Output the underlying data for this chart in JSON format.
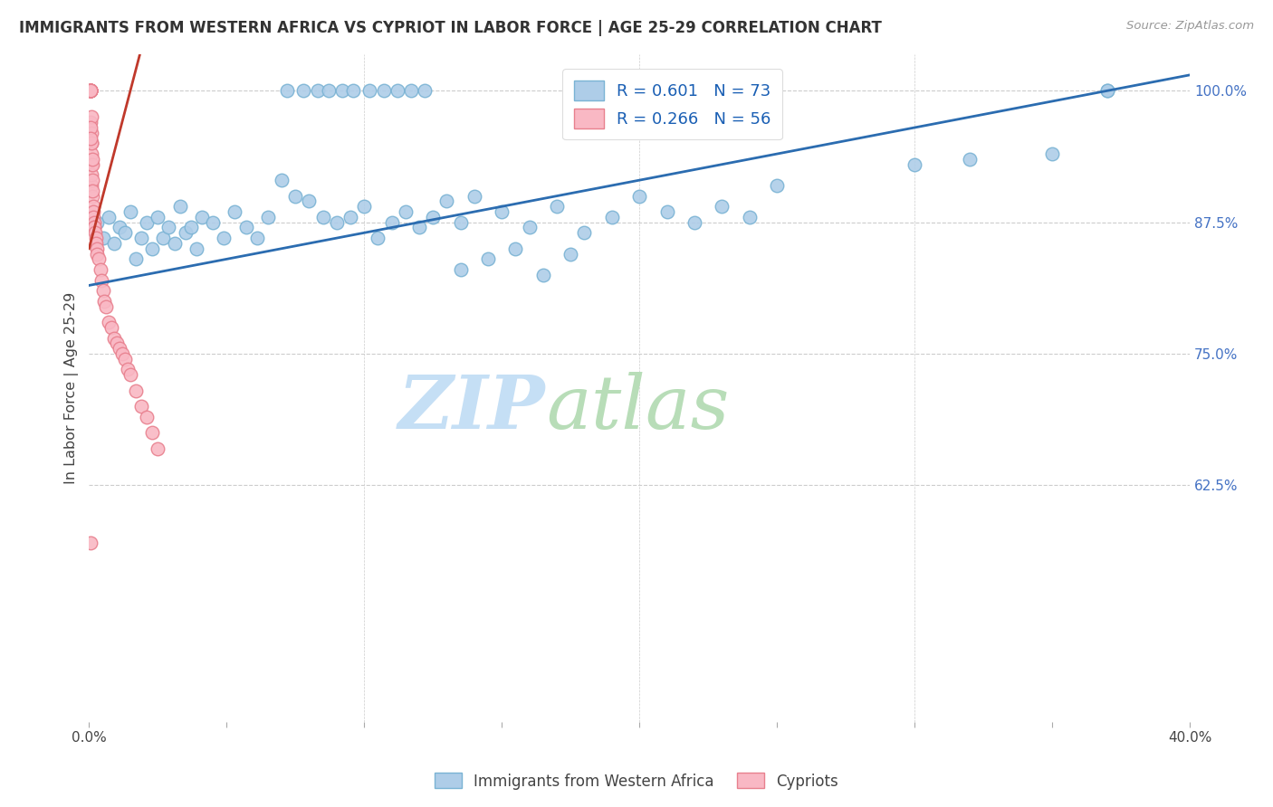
{
  "title": "IMMIGRANTS FROM WESTERN AFRICA VS CYPRIOT IN LABOR FORCE | AGE 25-29 CORRELATION CHART",
  "source": "Source: ZipAtlas.com",
  "ylabel": "In Labor Force | Age 25-29",
  "xlim": [
    0.0,
    40.0
  ],
  "ylim": [
    40.0,
    103.5
  ],
  "x_tick_positions": [
    0,
    5,
    10,
    15,
    20,
    25,
    30,
    35,
    40
  ],
  "x_tick_labels": [
    "0.0%",
    "",
    "",
    "",
    "",
    "",
    "",
    "",
    "40.0%"
  ],
  "y_tick_positions": [
    62.5,
    75.0,
    87.5,
    100.0
  ],
  "y_tick_labels": [
    "62.5%",
    "75.0%",
    "87.5%",
    "100.0%"
  ],
  "blue_R": 0.601,
  "blue_N": 73,
  "pink_R": 0.266,
  "pink_N": 56,
  "blue_dot_color": "#aecde8",
  "blue_dot_edge": "#7ab3d4",
  "pink_dot_color": "#f9b8c4",
  "pink_dot_edge": "#e8808e",
  "blue_line_color": "#2b6cb0",
  "pink_line_color": "#c0392b",
  "legend_blue_label": "Immigrants from Western Africa",
  "legend_pink_label": "Cypriots",
  "watermark_zip_color": "#c8dff5",
  "watermark_atlas_color": "#c8e8c8",
  "blue_x": [
    0.3,
    0.5,
    0.7,
    0.9,
    1.1,
    1.3,
    1.5,
    1.7,
    1.9,
    2.1,
    2.3,
    2.5,
    2.7,
    2.9,
    3.1,
    3.3,
    3.5,
    3.7,
    3.9,
    4.1,
    4.5,
    4.9,
    5.3,
    5.7,
    6.1,
    6.5,
    7.0,
    7.5,
    8.0,
    8.5,
    9.0,
    9.5,
    10.0,
    10.5,
    11.0,
    11.5,
    12.0,
    12.5,
    13.0,
    13.5,
    14.0,
    15.0,
    16.0,
    17.0,
    18.0,
    19.0,
    20.0,
    21.0,
    22.0,
    23.0,
    24.0,
    25.0,
    7.2,
    7.8,
    8.3,
    8.7,
    9.2,
    9.6,
    10.2,
    10.7,
    11.2,
    11.7,
    12.2,
    30.0,
    32.0,
    35.0,
    37.0,
    13.5,
    14.5,
    15.5,
    16.5,
    17.5,
    37.0
  ],
  "blue_y": [
    87.5,
    86.0,
    88.0,
    85.5,
    87.0,
    86.5,
    88.5,
    84.0,
    86.0,
    87.5,
    85.0,
    88.0,
    86.0,
    87.0,
    85.5,
    89.0,
    86.5,
    87.0,
    85.0,
    88.0,
    87.5,
    86.0,
    88.5,
    87.0,
    86.0,
    88.0,
    91.5,
    90.0,
    89.5,
    88.0,
    87.5,
    88.0,
    89.0,
    86.0,
    87.5,
    88.5,
    87.0,
    88.0,
    89.5,
    87.5,
    90.0,
    88.5,
    87.0,
    89.0,
    86.5,
    88.0,
    90.0,
    88.5,
    87.5,
    89.0,
    88.0,
    91.0,
    100.0,
    100.0,
    100.0,
    100.0,
    100.0,
    100.0,
    100.0,
    100.0,
    100.0,
    100.0,
    100.0,
    93.0,
    93.5,
    94.0,
    100.0,
    83.0,
    84.0,
    85.0,
    82.5,
    84.5,
    100.0
  ],
  "pink_x": [
    0.05,
    0.05,
    0.05,
    0.05,
    0.05,
    0.06,
    0.06,
    0.06,
    0.07,
    0.08,
    0.08,
    0.09,
    0.1,
    0.1,
    0.11,
    0.12,
    0.12,
    0.13,
    0.14,
    0.15,
    0.16,
    0.17,
    0.18,
    0.2,
    0.22,
    0.24,
    0.26,
    0.28,
    0.3,
    0.35,
    0.4,
    0.45,
    0.5,
    0.55,
    0.6,
    0.7,
    0.8,
    0.9,
    1.0,
    1.1,
    1.2,
    1.3,
    1.4,
    1.5,
    1.7,
    1.9,
    2.1,
    2.3,
    2.5,
    0.08,
    0.09,
    0.1,
    0.11,
    0.07,
    0.06,
    0.05
  ],
  "pink_y": [
    100.0,
    100.0,
    100.0,
    100.0,
    100.0,
    100.0,
    100.0,
    100.0,
    97.0,
    95.0,
    94.0,
    93.0,
    91.0,
    92.0,
    90.0,
    93.0,
    91.5,
    90.5,
    89.0,
    88.5,
    88.0,
    87.5,
    87.0,
    87.0,
    86.5,
    86.0,
    85.5,
    85.0,
    84.5,
    84.0,
    83.0,
    82.0,
    81.0,
    80.0,
    79.5,
    78.0,
    77.5,
    76.5,
    76.0,
    75.5,
    75.0,
    74.5,
    73.5,
    73.0,
    71.5,
    70.0,
    69.0,
    67.5,
    66.0,
    97.5,
    96.0,
    95.0,
    93.5,
    96.5,
    95.5,
    57.0
  ]
}
